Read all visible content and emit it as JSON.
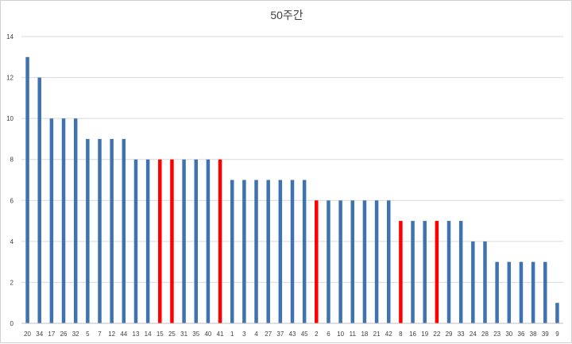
{
  "chart_data": {
    "type": "bar",
    "title": "50주간",
    "xlabel": "",
    "ylabel": "",
    "ylim": [
      0,
      14
    ],
    "yticks": [
      0,
      2,
      4,
      6,
      8,
      10,
      12,
      14
    ],
    "grid": true,
    "legend": "none",
    "categories": [
      "20",
      "34",
      "17",
      "26",
      "32",
      "5",
      "7",
      "12",
      "44",
      "13",
      "14",
      "15",
      "25",
      "31",
      "35",
      "40",
      "41",
      "1",
      "3",
      "4",
      "27",
      "37",
      "43",
      "45",
      "2",
      "6",
      "10",
      "11",
      "18",
      "21",
      "42",
      "8",
      "16",
      "19",
      "22",
      "29",
      "33",
      "24",
      "28",
      "23",
      "30",
      "36",
      "38",
      "39",
      "9"
    ],
    "values": [
      13,
      12,
      10,
      10,
      10,
      9,
      9,
      9,
      9,
      8,
      8,
      8,
      8,
      8,
      8,
      8,
      8,
      7,
      7,
      7,
      7,
      7,
      7,
      7,
      6,
      6,
      6,
      6,
      6,
      6,
      6,
      5,
      5,
      5,
      5,
      5,
      5,
      4,
      4,
      3,
      3,
      3,
      3,
      3,
      1
    ],
    "highlighted": [
      "15",
      "25",
      "41",
      "2",
      "8",
      "22"
    ],
    "colors": {
      "bar": "#3f73b0",
      "highlight": "#ff0000",
      "grid": "#d9d9d9"
    }
  }
}
